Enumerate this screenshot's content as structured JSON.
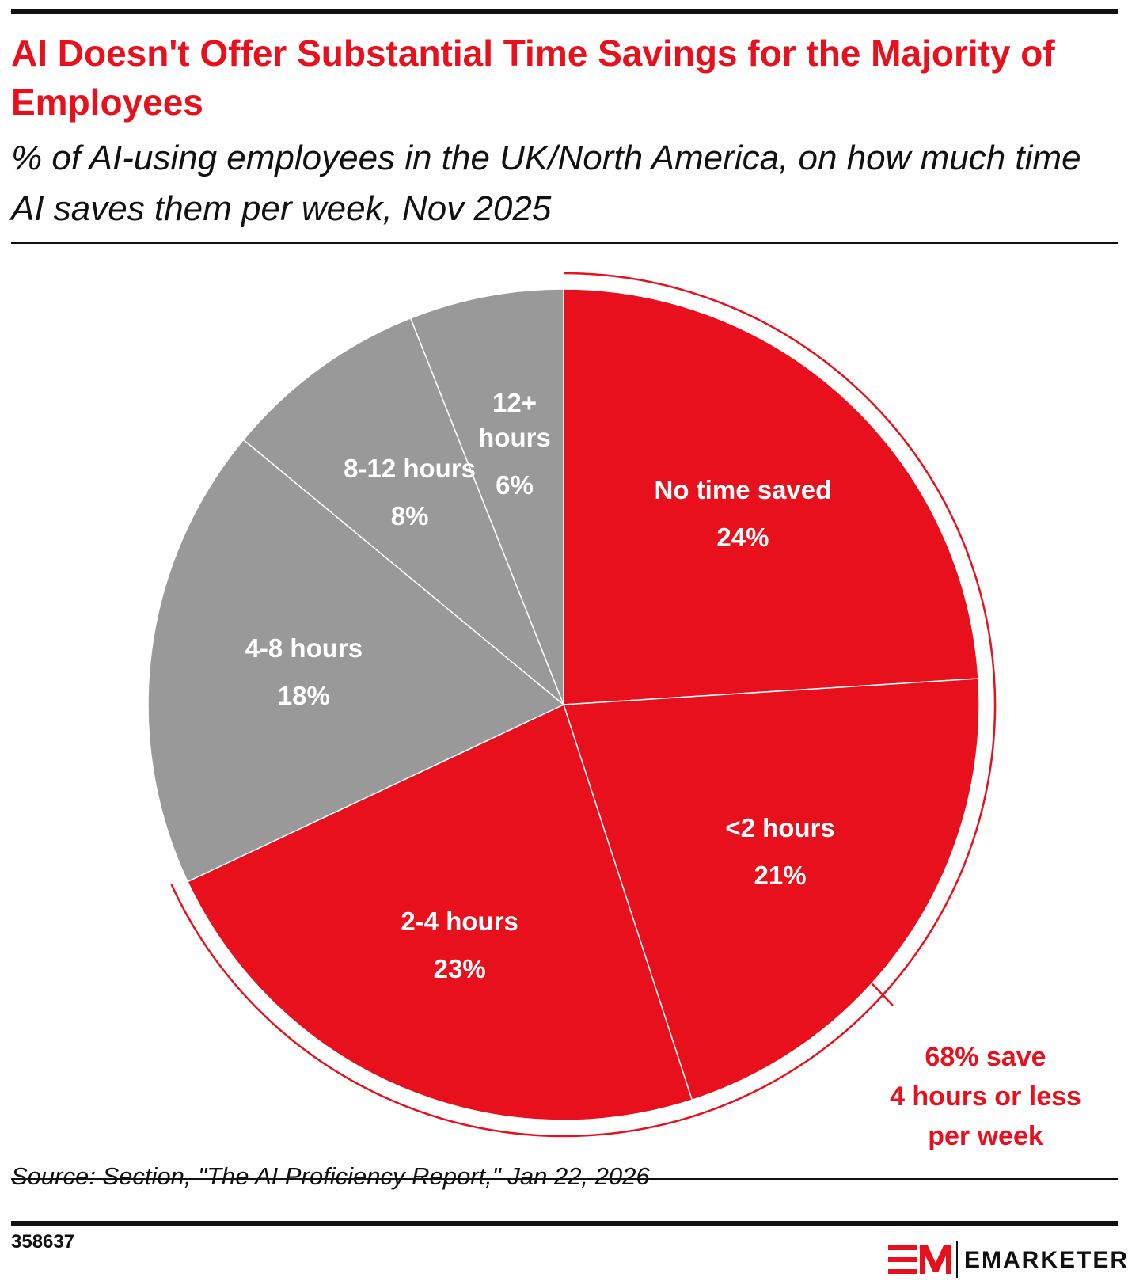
{
  "chart_data": {
    "type": "pie",
    "title": "AI Doesn't Offer Substantial Time Savings for the Majority of Employees",
    "subtitle": "% of AI-using employees in the UK/North America, on how much time AI saves them per week, Nov 2025",
    "categories": [
      "No time saved",
      "<2 hours",
      "2-4 hours",
      "4-8 hours",
      "8-12 hours",
      "12+ hours"
    ],
    "values": [
      24,
      21,
      23,
      18,
      8,
      6
    ],
    "value_labels": [
      "24%",
      "21%",
      "23%",
      "18%",
      "8%",
      "6%"
    ],
    "colors": [
      "#e8101c",
      "#e8101c",
      "#e8101c",
      "#999999",
      "#999999",
      "#999999"
    ],
    "annotation": [
      "68% save",
      "4 hours or less",
      "per week"
    ],
    "source": "Source: Section, \"The AI Proficiency Report,\" Jan 22, 2026",
    "chart_id": "358637",
    "brand": "EMARKETER"
  }
}
